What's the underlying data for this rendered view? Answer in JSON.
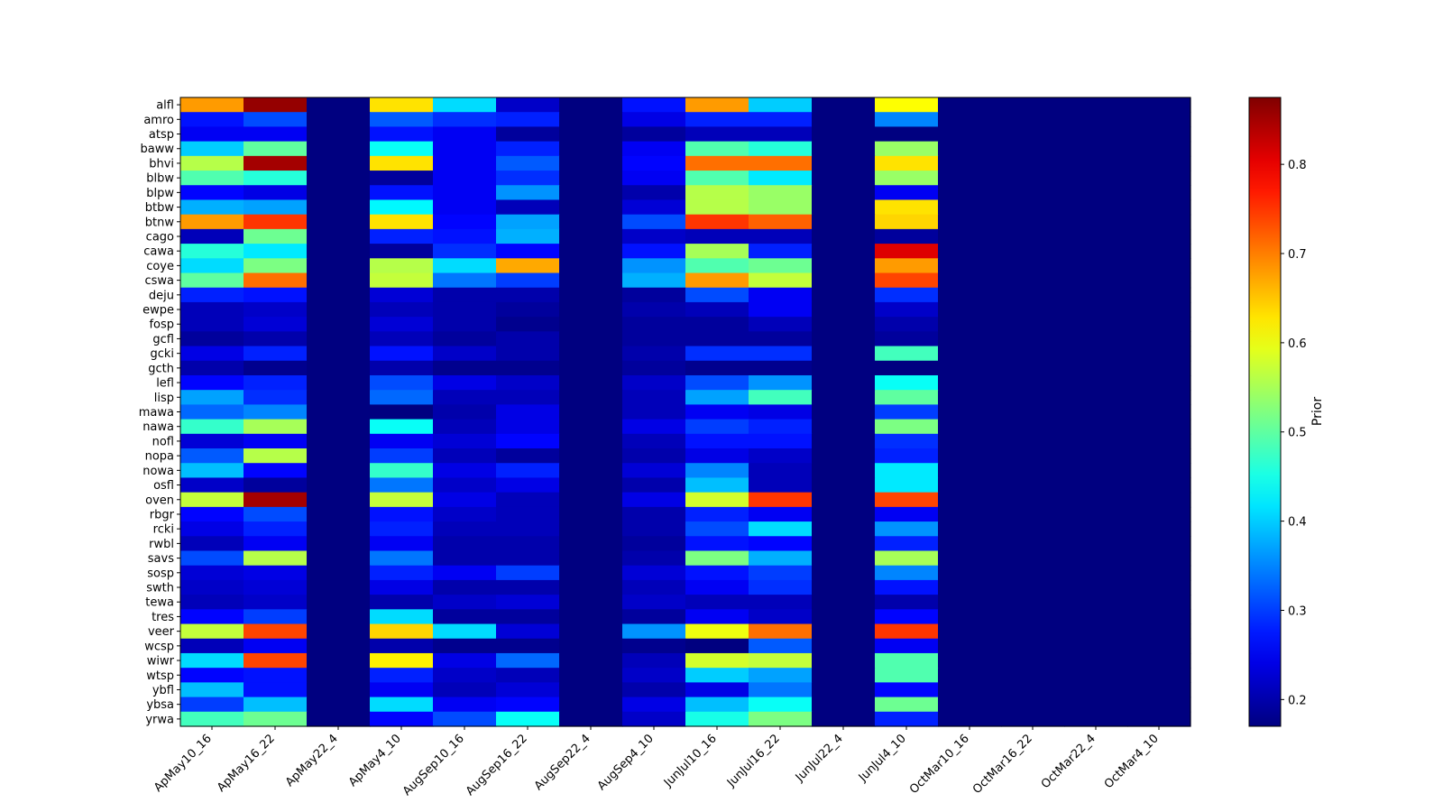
{
  "chart_data": {
    "type": "heatmap",
    "title": "",
    "xlabel": "",
    "ylabel": "",
    "colormap": "jet",
    "colorbar": {
      "label": "Prior",
      "range": [
        0.17,
        0.875
      ],
      "ticks": [
        0.2,
        0.3,
        0.4,
        0.5,
        0.6,
        0.7,
        0.8
      ]
    },
    "columns": [
      "ApMay10_16",
      "ApMay16_22",
      "ApMay22_4",
      "ApMay4_10",
      "AugSep10_16",
      "AugSep16_22",
      "AugSep22_4",
      "AugSep4_10",
      "JunJul10_16",
      "JunJul16_22",
      "JunJul22_4",
      "JunJul4_10",
      "OctMar10_16",
      "OctMar16_22",
      "OctMar22_4",
      "OctMar4_10"
    ],
    "rows": [
      "alfl",
      "amro",
      "atsp",
      "baww",
      "bhvi",
      "blbw",
      "blpw",
      "btbw",
      "btnw",
      "cago",
      "cawa",
      "coye",
      "cswa",
      "deju",
      "ewpe",
      "fosp",
      "gcfl",
      "gcki",
      "gcth",
      "lefl",
      "lisp",
      "mawa",
      "nawa",
      "nofl",
      "nopa",
      "nowa",
      "osfl",
      "oven",
      "rbgr",
      "rcki",
      "rwbl",
      "savs",
      "sosp",
      "swth",
      "tewa",
      "tres",
      "veer",
      "wcsp",
      "wiwr",
      "wtsp",
      "ybfl",
      "ybsa",
      "yrwa"
    ],
    "values": [
      [
        0.68,
        0.86,
        0.17,
        0.63,
        0.41,
        0.22,
        0.17,
        0.27,
        0.68,
        0.4,
        0.17,
        0.61,
        0.17,
        0.17,
        0.17,
        0.17
      ],
      [
        0.27,
        0.31,
        0.17,
        0.32,
        0.29,
        0.28,
        0.17,
        0.24,
        0.28,
        0.28,
        0.17,
        0.35,
        0.17,
        0.17,
        0.17,
        0.17
      ],
      [
        0.25,
        0.25,
        0.17,
        0.27,
        0.25,
        0.19,
        0.17,
        0.19,
        0.21,
        0.21,
        0.17,
        0.17,
        0.17,
        0.17,
        0.17,
        0.17
      ],
      [
        0.4,
        0.5,
        0.17,
        0.44,
        0.25,
        0.28,
        0.17,
        0.25,
        0.49,
        0.46,
        0.17,
        0.54,
        0.17,
        0.17,
        0.17,
        0.17
      ],
      [
        0.56,
        0.85,
        0.17,
        0.63,
        0.25,
        0.32,
        0.17,
        0.26,
        0.71,
        0.71,
        0.17,
        0.63,
        0.17,
        0.17,
        0.17,
        0.17
      ],
      [
        0.49,
        0.46,
        0.17,
        0.19,
        0.25,
        0.29,
        0.17,
        0.25,
        0.49,
        0.42,
        0.17,
        0.54,
        0.17,
        0.17,
        0.17,
        0.17
      ],
      [
        0.26,
        0.24,
        0.17,
        0.27,
        0.25,
        0.36,
        0.17,
        0.2,
        0.56,
        0.54,
        0.17,
        0.25,
        0.17,
        0.17,
        0.17,
        0.17
      ],
      [
        0.38,
        0.37,
        0.17,
        0.43,
        0.25,
        0.21,
        0.17,
        0.23,
        0.56,
        0.54,
        0.17,
        0.63,
        0.17,
        0.17,
        0.17,
        0.17
      ],
      [
        0.68,
        0.75,
        0.17,
        0.63,
        0.26,
        0.37,
        0.17,
        0.31,
        0.75,
        0.72,
        0.17,
        0.64,
        0.17,
        0.17,
        0.17,
        0.17
      ],
      [
        0.21,
        0.51,
        0.17,
        0.28,
        0.27,
        0.38,
        0.17,
        0.22,
        0.21,
        0.21,
        0.17,
        0.19,
        0.17,
        0.17,
        0.17,
        0.17
      ],
      [
        0.46,
        0.42,
        0.17,
        0.19,
        0.29,
        0.26,
        0.17,
        0.27,
        0.55,
        0.28,
        0.17,
        0.81,
        0.17,
        0.17,
        0.17,
        0.17
      ],
      [
        0.41,
        0.52,
        0.17,
        0.56,
        0.41,
        0.67,
        0.17,
        0.36,
        0.49,
        0.51,
        0.17,
        0.68,
        0.17,
        0.17,
        0.17,
        0.17
      ],
      [
        0.5,
        0.71,
        0.17,
        0.57,
        0.34,
        0.3,
        0.17,
        0.38,
        0.68,
        0.57,
        0.17,
        0.74,
        0.17,
        0.17,
        0.17,
        0.17
      ],
      [
        0.28,
        0.27,
        0.17,
        0.23,
        0.2,
        0.2,
        0.17,
        0.19,
        0.31,
        0.25,
        0.17,
        0.29,
        0.17,
        0.17,
        0.17,
        0.17
      ],
      [
        0.21,
        0.22,
        0.17,
        0.21,
        0.2,
        0.19,
        0.17,
        0.2,
        0.21,
        0.25,
        0.17,
        0.22,
        0.17,
        0.17,
        0.17,
        0.17
      ],
      [
        0.21,
        0.23,
        0.17,
        0.23,
        0.2,
        0.18,
        0.17,
        0.19,
        0.19,
        0.21,
        0.17,
        0.2,
        0.17,
        0.17,
        0.17,
        0.17
      ],
      [
        0.19,
        0.2,
        0.17,
        0.21,
        0.19,
        0.2,
        0.17,
        0.19,
        0.19,
        0.19,
        0.17,
        0.19,
        0.17,
        0.17,
        0.17,
        0.17
      ],
      [
        0.24,
        0.28,
        0.17,
        0.27,
        0.22,
        0.2,
        0.17,
        0.2,
        0.29,
        0.29,
        0.17,
        0.48,
        0.17,
        0.17,
        0.17,
        0.17
      ],
      [
        0.2,
        0.18,
        0.17,
        0.2,
        0.18,
        0.18,
        0.17,
        0.19,
        0.18,
        0.18,
        0.17,
        0.17,
        0.17,
        0.17,
        0.17,
        0.17
      ],
      [
        0.26,
        0.28,
        0.17,
        0.31,
        0.24,
        0.22,
        0.17,
        0.22,
        0.31,
        0.36,
        0.17,
        0.44,
        0.17,
        0.17,
        0.17,
        0.17
      ],
      [
        0.37,
        0.29,
        0.17,
        0.33,
        0.21,
        0.21,
        0.17,
        0.21,
        0.37,
        0.48,
        0.17,
        0.5,
        0.17,
        0.17,
        0.17,
        0.17
      ],
      [
        0.33,
        0.35,
        0.17,
        0.17,
        0.2,
        0.24,
        0.17,
        0.21,
        0.25,
        0.24,
        0.17,
        0.3,
        0.17,
        0.17,
        0.17,
        0.17
      ],
      [
        0.47,
        0.55,
        0.17,
        0.44,
        0.21,
        0.24,
        0.17,
        0.24,
        0.3,
        0.28,
        0.17,
        0.52,
        0.17,
        0.17,
        0.17,
        0.17
      ],
      [
        0.23,
        0.25,
        0.17,
        0.25,
        0.23,
        0.26,
        0.17,
        0.21,
        0.27,
        0.27,
        0.17,
        0.29,
        0.17,
        0.17,
        0.17,
        0.17
      ],
      [
        0.32,
        0.56,
        0.17,
        0.3,
        0.21,
        0.19,
        0.17,
        0.2,
        0.24,
        0.22,
        0.17,
        0.28,
        0.17,
        0.17,
        0.17,
        0.17
      ],
      [
        0.39,
        0.26,
        0.17,
        0.47,
        0.24,
        0.28,
        0.17,
        0.23,
        0.35,
        0.21,
        0.17,
        0.42,
        0.17,
        0.17,
        0.17,
        0.17
      ],
      [
        0.22,
        0.19,
        0.17,
        0.34,
        0.22,
        0.24,
        0.17,
        0.2,
        0.39,
        0.21,
        0.17,
        0.42,
        0.17,
        0.17,
        0.17,
        0.17
      ],
      [
        0.57,
        0.85,
        0.17,
        0.57,
        0.24,
        0.21,
        0.17,
        0.24,
        0.58,
        0.75,
        0.17,
        0.74,
        0.17,
        0.17,
        0.17,
        0.17
      ],
      [
        0.26,
        0.31,
        0.17,
        0.27,
        0.22,
        0.21,
        0.17,
        0.2,
        0.28,
        0.25,
        0.17,
        0.25,
        0.17,
        0.17,
        0.17,
        0.17
      ],
      [
        0.24,
        0.28,
        0.17,
        0.28,
        0.21,
        0.21,
        0.17,
        0.2,
        0.31,
        0.41,
        0.17,
        0.36,
        0.17,
        0.17,
        0.17,
        0.17
      ],
      [
        0.21,
        0.25,
        0.17,
        0.25,
        0.2,
        0.2,
        0.17,
        0.19,
        0.27,
        0.26,
        0.17,
        0.28,
        0.17,
        0.17,
        0.17,
        0.17
      ],
      [
        0.31,
        0.56,
        0.17,
        0.34,
        0.2,
        0.2,
        0.17,
        0.2,
        0.52,
        0.38,
        0.17,
        0.55,
        0.17,
        0.17,
        0.17,
        0.17
      ],
      [
        0.23,
        0.24,
        0.17,
        0.28,
        0.25,
        0.3,
        0.17,
        0.23,
        0.27,
        0.3,
        0.17,
        0.35,
        0.17,
        0.17,
        0.17,
        0.17
      ],
      [
        0.22,
        0.23,
        0.17,
        0.24,
        0.2,
        0.2,
        0.17,
        0.21,
        0.25,
        0.29,
        0.17,
        0.27,
        0.17,
        0.17,
        0.17,
        0.17
      ],
      [
        0.21,
        0.22,
        0.17,
        0.2,
        0.22,
        0.23,
        0.17,
        0.22,
        0.21,
        0.21,
        0.17,
        0.2,
        0.17,
        0.17,
        0.17,
        0.17
      ],
      [
        0.26,
        0.3,
        0.17,
        0.41,
        0.19,
        0.19,
        0.17,
        0.19,
        0.25,
        0.22,
        0.17,
        0.26,
        0.17,
        0.17,
        0.17,
        0.17
      ],
      [
        0.57,
        0.74,
        0.17,
        0.64,
        0.41,
        0.23,
        0.17,
        0.36,
        0.6,
        0.71,
        0.17,
        0.75,
        0.17,
        0.17,
        0.17,
        0.17
      ],
      [
        0.21,
        0.25,
        0.17,
        0.2,
        0.18,
        0.18,
        0.17,
        0.18,
        0.17,
        0.32,
        0.17,
        0.25,
        0.17,
        0.17,
        0.17,
        0.17
      ],
      [
        0.41,
        0.74,
        0.17,
        0.62,
        0.24,
        0.33,
        0.17,
        0.21,
        0.58,
        0.57,
        0.17,
        0.49,
        0.17,
        0.17,
        0.17,
        0.17
      ],
      [
        0.26,
        0.27,
        0.17,
        0.28,
        0.22,
        0.21,
        0.17,
        0.22,
        0.4,
        0.37,
        0.17,
        0.49,
        0.17,
        0.17,
        0.17,
        0.17
      ],
      [
        0.39,
        0.27,
        0.17,
        0.25,
        0.21,
        0.23,
        0.17,
        0.2,
        0.24,
        0.34,
        0.17,
        0.26,
        0.17,
        0.17,
        0.17,
        0.17
      ],
      [
        0.3,
        0.39,
        0.17,
        0.41,
        0.25,
        0.26,
        0.17,
        0.24,
        0.39,
        0.44,
        0.17,
        0.51,
        0.17,
        0.17,
        0.17,
        0.17
      ],
      [
        0.48,
        0.51,
        0.17,
        0.26,
        0.31,
        0.44,
        0.17,
        0.22,
        0.45,
        0.52,
        0.17,
        0.28,
        0.17,
        0.17,
        0.17,
        0.17
      ]
    ]
  }
}
